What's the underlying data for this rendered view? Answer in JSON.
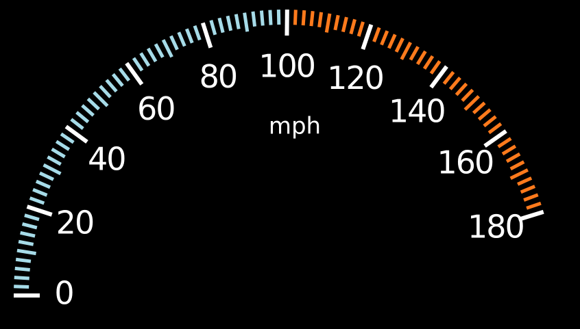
{
  "gauge": {
    "unit": "mph",
    "ticks": [
      0,
      20,
      40,
      60,
      80,
      100,
      120,
      140,
      160,
      180
    ],
    "colors": {
      "low": "#a6dbe8",
      "high": "#ff7a1c",
      "major": "#ffffff",
      "high_from": 100
    }
  }
}
